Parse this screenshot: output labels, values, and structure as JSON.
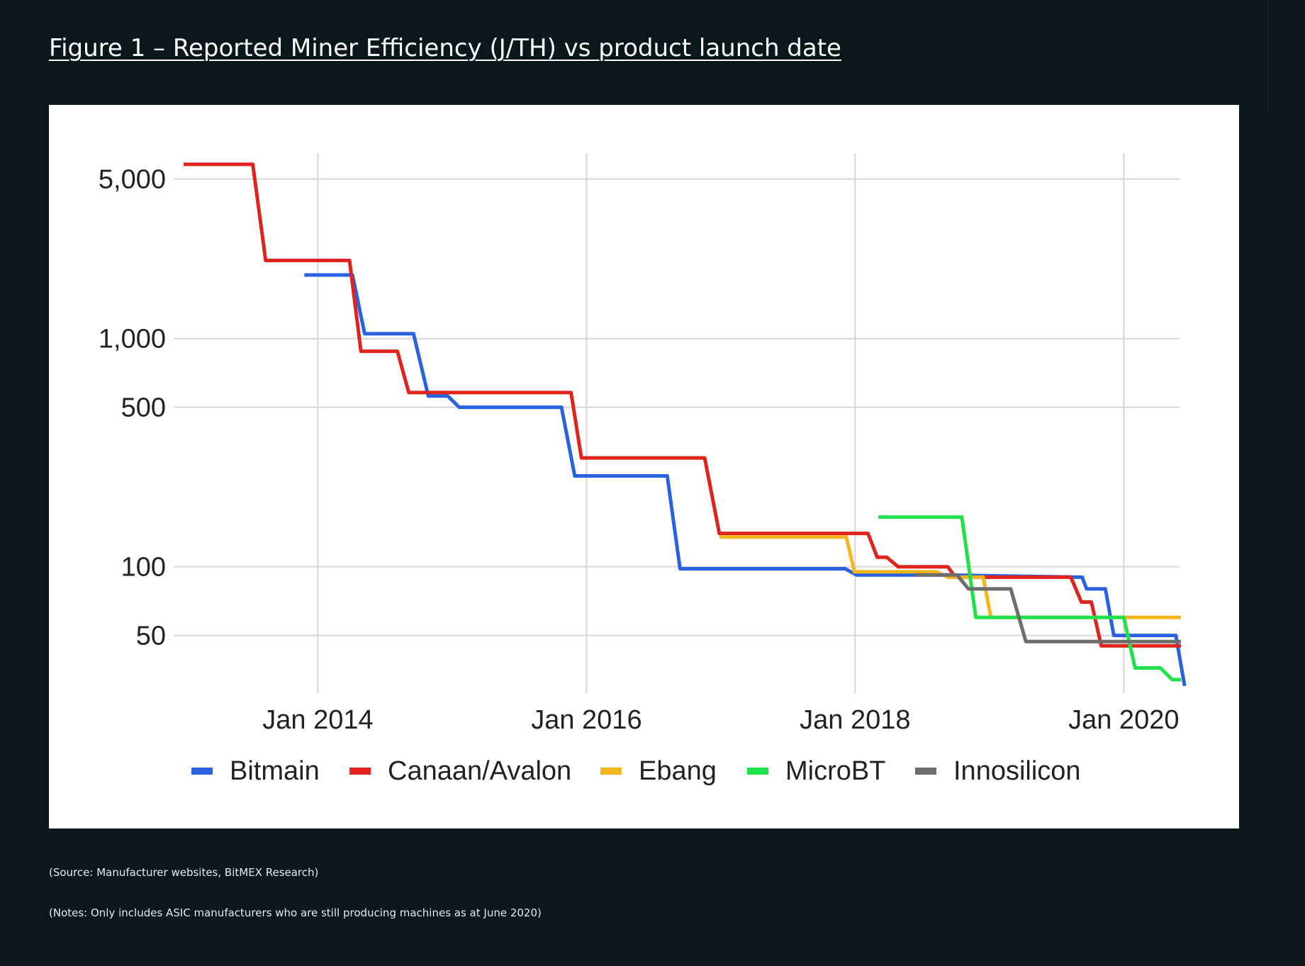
{
  "page": {
    "title": "Figure 1 – Reported Miner Efficiency (J/TH) vs product launch date",
    "source_note": "(Source: Manufacturer websites, BitMEX Research)",
    "notes": "(Notes: Only includes ASIC manufacturers who are still producing machines as at June 2020)"
  },
  "chart_data": {
    "type": "line",
    "title": "",
    "xlabel": "",
    "ylabel": "",
    "y_scale": "log",
    "ylim": [
      30,
      6500
    ],
    "xlim": [
      "2013-01",
      "2020-06"
    ],
    "y_ticks": [
      {
        "value": 5000,
        "label": "5,000"
      },
      {
        "value": 1000,
        "label": "1,000"
      },
      {
        "value": 500,
        "label": "500"
      },
      {
        "value": 100,
        "label": "100"
      },
      {
        "value": 50,
        "label": "50"
      }
    ],
    "x_ticks": [
      {
        "value": "2014-01",
        "label": "Jan 2014"
      },
      {
        "value": "2016-01",
        "label": "Jan 2016"
      },
      {
        "value": "2018-01",
        "label": "Jan 2018"
      },
      {
        "value": "2020-01",
        "label": "Jan 2020"
      }
    ],
    "grid": true,
    "legend_position": "bottom",
    "series": [
      {
        "name": "Bitmain",
        "color": "#2962e0",
        "points": [
          [
            "2013-11-25",
            1900
          ],
          [
            "2014-04-05",
            1900
          ],
          [
            "2014-05-08",
            1050
          ],
          [
            "2014-09-18",
            1050
          ],
          [
            "2014-10-28",
            560
          ],
          [
            "2014-12-20",
            560
          ],
          [
            "2015-01-20",
            500
          ],
          [
            "2015-10-25",
            500
          ],
          [
            "2015-11-30",
            250
          ],
          [
            "2016-08-08",
            250
          ],
          [
            "2016-09-12",
            98
          ],
          [
            "2017-12-05",
            98
          ],
          [
            "2018-01-05",
            92
          ],
          [
            "2018-09-01",
            92
          ],
          [
            "2019-09-10",
            90
          ],
          [
            "2019-09-22",
            80
          ],
          [
            "2019-11-12",
            80
          ],
          [
            "2019-12-05",
            50
          ],
          [
            "2020-05-22",
            50
          ],
          [
            "2020-06-15",
            30
          ]
        ]
      },
      {
        "name": "Canaan/Avalon",
        "color": "#e0231c",
        "points": [
          [
            "2013-01-01",
            5800
          ],
          [
            "2013-07-08",
            5800
          ],
          [
            "2013-08-12",
            2200
          ],
          [
            "2014-03-28",
            2200
          ],
          [
            "2014-04-28",
            880
          ],
          [
            "2014-08-05",
            880
          ],
          [
            "2014-09-05",
            580
          ],
          [
            "2015-11-20",
            580
          ],
          [
            "2015-12-18",
            300
          ],
          [
            "2016-11-18",
            300
          ],
          [
            "2016-12-28",
            140
          ],
          [
            "2018-02-05",
            140
          ],
          [
            "2018-03-02",
            110
          ],
          [
            "2018-03-28",
            110
          ],
          [
            "2018-04-28",
            100
          ],
          [
            "2018-09-10",
            100
          ],
          [
            "2018-09-30",
            90
          ],
          [
            "2019-08-10",
            90
          ],
          [
            "2019-09-08",
            70
          ],
          [
            "2019-10-05",
            70
          ],
          [
            "2019-11-01",
            45
          ],
          [
            "2020-06-05",
            45
          ]
        ]
      },
      {
        "name": "Ebang",
        "color": "#f4b61b",
        "points": [
          [
            "2016-12-28",
            135
          ],
          [
            "2017-12-08",
            135
          ],
          [
            "2017-12-30",
            95
          ],
          [
            "2018-08-10",
            95
          ],
          [
            "2018-09-10",
            90
          ],
          [
            "2018-12-15",
            90
          ],
          [
            "2019-01-05",
            60
          ],
          [
            "2020-06-05",
            60
          ]
        ]
      },
      {
        "name": "MicroBT",
        "color": "#1fe24a",
        "points": [
          [
            "2018-03-05",
            165
          ],
          [
            "2018-10-18",
            165
          ],
          [
            "2018-11-25",
            60
          ],
          [
            "2020-01-01",
            60
          ],
          [
            "2020-02-01",
            36
          ],
          [
            "2020-04-10",
            36
          ],
          [
            "2020-05-12",
            32
          ],
          [
            "2020-06-05",
            32
          ]
        ]
      },
      {
        "name": "Innosilicon",
        "color": "#6d6d6d",
        "points": [
          [
            "2018-06-15",
            92
          ],
          [
            "2018-10-05",
            92
          ],
          [
            "2018-11-05",
            80
          ],
          [
            "2019-02-28",
            80
          ],
          [
            "2019-04-10",
            47
          ],
          [
            "2020-06-05",
            47
          ]
        ]
      }
    ]
  }
}
